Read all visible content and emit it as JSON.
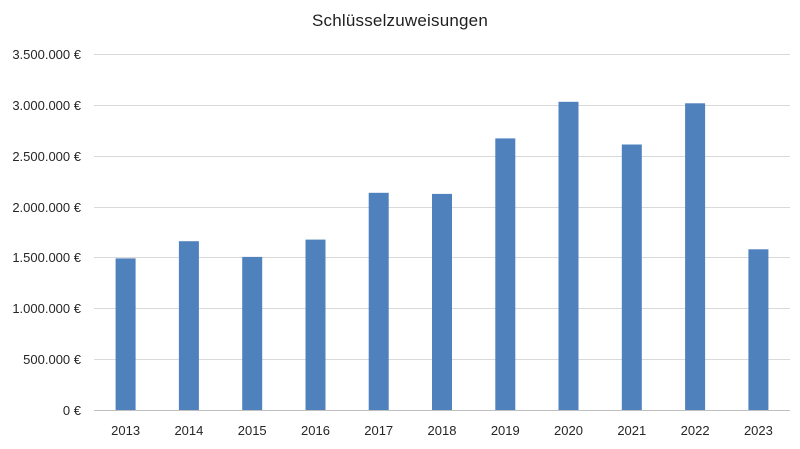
{
  "colors": {
    "bar": "#4f81bd"
  },
  "chart_data": {
    "type": "bar",
    "title": "Schlüsselzuweisungen",
    "xlabel": "",
    "ylabel": "",
    "categories": [
      "2013",
      "2014",
      "2015",
      "2016",
      "2017",
      "2018",
      "2019",
      "2020",
      "2021",
      "2022",
      "2023"
    ],
    "values": [
      1490000,
      1660000,
      1505000,
      1675000,
      2135000,
      2125000,
      2670000,
      3030000,
      2610000,
      3015000,
      1580000
    ],
    "ylim": [
      0,
      3500000
    ],
    "y_ticks": [
      0,
      500000,
      1000000,
      1500000,
      2000000,
      2500000,
      3000000,
      3500000
    ],
    "y_tick_labels": [
      "0 €",
      "500.000 €",
      "1.000.000 €",
      "1.500.000 €",
      "2.000.000 €",
      "2.500.000 €",
      "3.000.000 €",
      "3.500.000 €"
    ],
    "grid": true,
    "legend": "none"
  }
}
